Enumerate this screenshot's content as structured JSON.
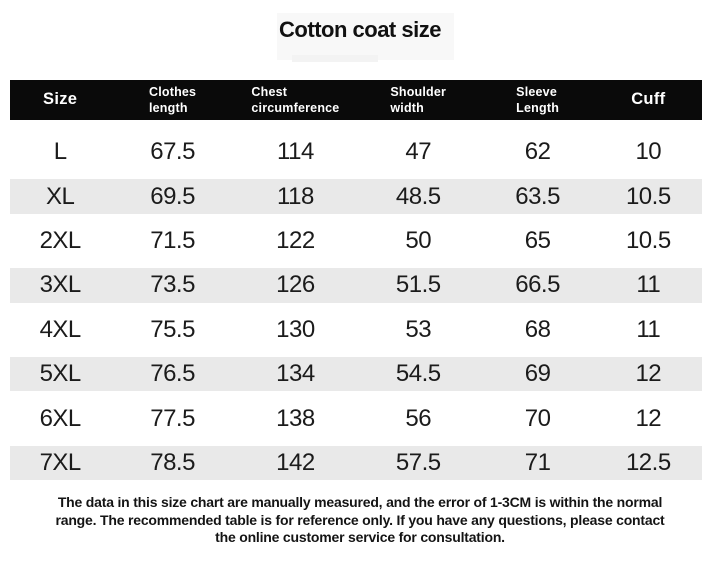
{
  "chart_data": {
    "type": "table",
    "title": "Cotton coat size",
    "columns": [
      "Size",
      "Clothes length",
      "Chest circumference",
      "Shoulder width",
      "Sleeve Length",
      "Cuff"
    ],
    "header_lines": [
      {
        "line1": "Size"
      },
      {
        "line1": "Clothes",
        "line2": "length"
      },
      {
        "line1": "Chest",
        "line2": "circumference"
      },
      {
        "line1": "Shoulder",
        "line2": "width"
      },
      {
        "line1": "Sleeve",
        "line2": "Length"
      },
      {
        "line1": "Cuff"
      }
    ],
    "rows": [
      [
        "L",
        "67.5",
        "114",
        "47",
        "62",
        "10"
      ],
      [
        "XL",
        "69.5",
        "118",
        "48.5",
        "63.5",
        "10.5"
      ],
      [
        "2XL",
        "71.5",
        "122",
        "50",
        "65",
        "10.5"
      ],
      [
        "3XL",
        "73.5",
        "126",
        "51.5",
        "66.5",
        "11"
      ],
      [
        "4XL",
        "75.5",
        "130",
        "53",
        "68",
        "11"
      ],
      [
        "5XL",
        "76.5",
        "134",
        "54.5",
        "69",
        "12"
      ],
      [
        "6XL",
        "77.5",
        "138",
        "56",
        "70",
        "12"
      ],
      [
        "7XL",
        "78.5",
        "142",
        "57.5",
        "71",
        "12.5"
      ]
    ],
    "layout": {
      "zebra_striped_rows": [
        "XL",
        "3XL",
        "5XL",
        "7XL"
      ],
      "header_style": "black-bar-white-text"
    }
  },
  "footer": {
    "lines": [
      "The data in this size chart are manually measured, and the error of 1-3CM is within the normal",
      "range. The recommended table is for reference only. If you have any questions, please contact",
      "the online customer service for consultation."
    ]
  },
  "colors": {
    "header_bg": "#0a0a0a",
    "header_text": "#ffffff",
    "stripe": "#e9e9e9",
    "body_text": "#1b1b1b",
    "background": "#ffffff"
  }
}
